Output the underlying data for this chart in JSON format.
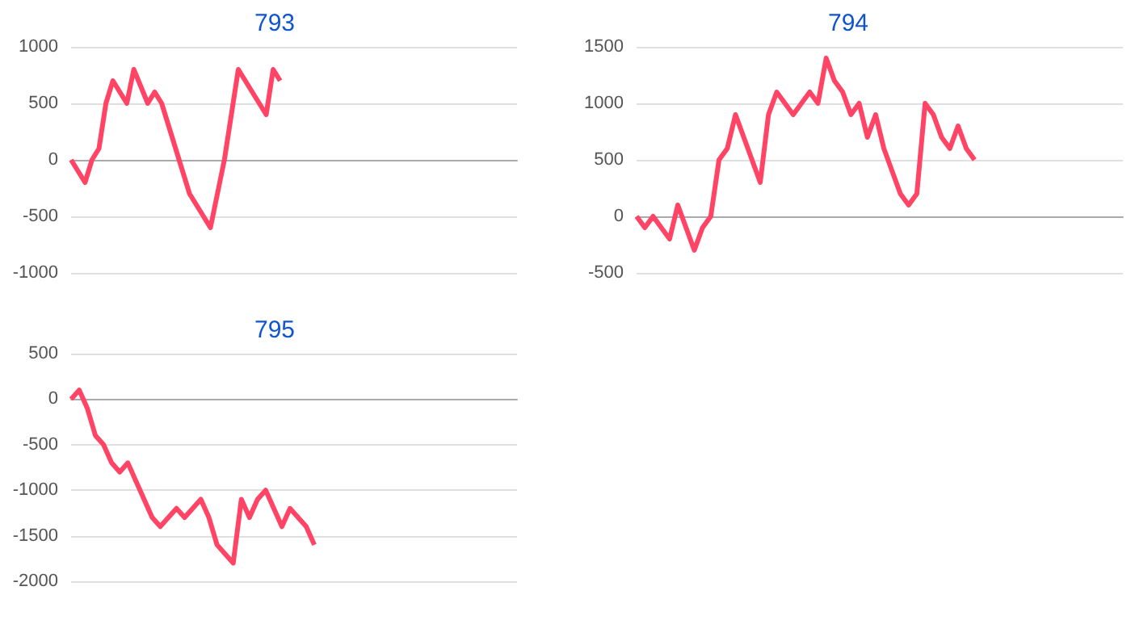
{
  "chart_data": [
    {
      "type": "line",
      "title": "793",
      "categories": [
        null,
        null,
        null,
        null,
        null,
        null,
        null,
        null,
        null,
        null,
        null,
        null,
        null,
        null,
        null,
        null,
        null,
        null,
        null,
        null,
        null,
        null,
        null,
        null,
        null,
        null,
        null,
        null,
        null,
        null,
        null,
        null,
        null,
        null,
        null,
        null,
        null,
        null,
        null,
        null,
        null,
        null,
        null,
        null,
        null,
        null,
        null,
        null,
        null,
        null,
        null,
        null,
        null,
        null,
        null,
        null,
        null,
        null,
        null,
        null,
        null,
        null,
        null,
        null,
        null
      ],
      "series": [
        {
          "color": "#ff4466",
          "values": [
            0,
            -100,
            -200,
            0,
            100,
            500,
            700,
            600,
            500,
            800,
            650,
            500,
            600,
            500,
            300,
            100,
            -100,
            -300,
            -400,
            -500,
            -600,
            -300,
            0,
            400,
            800,
            700,
            600,
            500,
            400,
            800,
            700,
            null,
            null,
            null,
            null,
            null,
            null,
            null,
            null,
            null,
            null,
            null,
            null,
            null,
            null,
            null,
            null,
            null,
            null,
            null,
            null,
            null,
            null,
            null,
            null,
            null,
            null,
            null,
            null,
            null,
            null,
            null,
            null,
            null,
            null
          ]
        }
      ],
      "ylim": [
        -1000,
        1000
      ],
      "yticks": [
        -1000,
        -500,
        0,
        500,
        1000
      ],
      "grid": "y",
      "line_style": "solid",
      "tick_labels": "y"
    },
    {
      "type": "line",
      "title": "794",
      "categories": [
        null,
        null,
        null,
        null,
        null,
        null,
        null,
        null,
        null,
        null,
        null,
        null,
        null,
        null,
        null,
        null,
        null,
        null,
        null,
        null,
        null,
        null,
        null,
        null,
        null,
        null,
        null,
        null,
        null,
        null,
        null,
        null,
        null,
        null,
        null,
        null,
        null,
        null,
        null,
        null,
        null,
        null,
        null,
        null,
        null,
        null,
        null,
        null,
        null,
        null,
        null,
        null,
        null,
        null,
        null,
        null,
        null,
        null,
        null,
        null
      ],
      "series": [
        {
          "color": "#ff4466",
          "values": [
            0,
            -100,
            0,
            -100,
            -200,
            100,
            -100,
            -300,
            -100,
            0,
            500,
            600,
            900,
            700,
            500,
            300,
            900,
            1100,
            1000,
            900,
            1000,
            1100,
            1000,
            1400,
            1200,
            1100,
            900,
            1000,
            700,
            900,
            600,
            400,
            200,
            100,
            200,
            1000,
            900,
            700,
            600,
            800,
            600,
            500,
            null,
            null,
            null,
            null,
            null,
            null,
            null,
            null,
            null,
            null,
            null,
            null,
            null,
            null,
            null,
            null,
            null,
            null
          ]
        }
      ],
      "ylim": [
        -500,
        1500
      ],
      "yticks": [
        -500,
        0,
        500,
        1000,
        1500
      ],
      "grid": "y",
      "line_style": "solid",
      "tick_labels": "y"
    },
    {
      "type": "line",
      "title": "795",
      "categories": [
        null,
        null,
        null,
        null,
        null,
        null,
        null,
        null,
        null,
        null,
        null,
        null,
        null,
        null,
        null,
        null,
        null,
        null,
        null,
        null,
        null,
        null,
        null,
        null,
        null,
        null,
        null,
        null,
        null,
        null,
        null,
        null,
        null,
        null,
        null,
        null,
        null,
        null,
        null,
        null,
        null,
        null,
        null,
        null,
        null,
        null,
        null,
        null,
        null,
        null,
        null,
        null,
        null,
        null,
        null,
        null
      ],
      "series": [
        {
          "color": "#ff4466",
          "values": [
            0,
            100,
            -100,
            -400,
            -500,
            -700,
            -800,
            -700,
            -900,
            -1100,
            -1300,
            -1400,
            -1300,
            -1200,
            -1300,
            -1200,
            -1100,
            -1300,
            -1600,
            -1700,
            -1800,
            -1100,
            -1300,
            -1100,
            -1000,
            -1200,
            -1400,
            -1200,
            -1300,
            -1400,
            -1600,
            null,
            null,
            null,
            null,
            null,
            null,
            null,
            null,
            null,
            null,
            null,
            null,
            null,
            null,
            null,
            null,
            null,
            null,
            null,
            null,
            null,
            null,
            null,
            null,
            null
          ]
        }
      ],
      "ylim": [
        -2000,
        500
      ],
      "yticks": [
        -2000,
        -1500,
        -1000,
        -500,
        0,
        500
      ],
      "grid": "y",
      "line_style": "solid",
      "tick_labels": "y"
    }
  ]
}
